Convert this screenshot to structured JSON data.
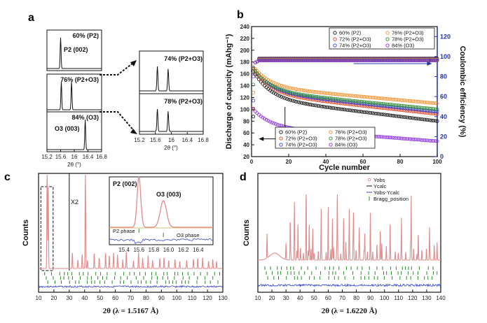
{
  "panel_labels": {
    "a": "a",
    "b": "b",
    "c": "c",
    "d": "d"
  },
  "chart_data": [
    {
      "panel": "a",
      "type": "line",
      "title": "",
      "xlabel": "2θ (°)",
      "ylabel": "",
      "left_xlim": [
        15.2,
        16.8
      ],
      "left_ticks": [
        "15.2",
        "15.6",
        "16",
        "16.4",
        "16.8"
      ],
      "right_xlim": [
        15.2,
        16.8
      ],
      "right_ticks": [
        "15.2",
        "15.6",
        "16",
        "16.4",
        "16.8"
      ],
      "left_boxes": [
        {
          "label": "60% (P2)",
          "sub": "P2 (002)",
          "peaks": [
            15.6
          ]
        },
        {
          "label": "76% (P2+O3)",
          "sub": "",
          "peaks": [
            15.62,
            15.92
          ]
        },
        {
          "label": "84% (O3)",
          "sub": "O3 (003)",
          "peaks": [
            16.32
          ]
        }
      ],
      "right_boxes": [
        {
          "label": "74% (P2+O3)",
          "peaks": [
            15.65,
            15.92
          ]
        },
        {
          "label": "78% (P2+O3)",
          "peaks": [
            15.65,
            15.92
          ]
        }
      ]
    },
    {
      "panel": "b",
      "type": "scatter",
      "xlabel": "Cycle number",
      "ylabel": "Discharge of capacity (mAhg⁻¹)",
      "y2label": "Coulombic efficiency (%)",
      "xlim": [
        0,
        100
      ],
      "ylim": [
        20,
        240
      ],
      "y2lim": [
        0,
        130
      ],
      "x_ticks": [
        "0",
        "20",
        "40",
        "60",
        "80",
        "100"
      ],
      "y_ticks": [
        "20",
        "40",
        "60",
        "80",
        "100",
        "120",
        "140",
        "160",
        "180",
        "200",
        "220",
        "240"
      ],
      "y2_ticks": [
        "0",
        "20",
        "40",
        "60",
        "80",
        "100",
        "120"
      ],
      "capacity_series": [
        {
          "name": "60% (P2)",
          "color": "#111111",
          "start": 165,
          "end": 80
        },
        {
          "name": "72% (P2+O3)",
          "color": "#e04020",
          "start": 168,
          "end": 92
        },
        {
          "name": "74% (P2+O3)",
          "color": "#2a3fd6",
          "start": 170,
          "end": 96
        },
        {
          "name": "76% (P2+O3)",
          "color": "#f0902a",
          "start": 172,
          "end": 110
        },
        {
          "name": "78% (P2+O3)",
          "color": "#2e8b2e",
          "start": 169,
          "end": 100
        },
        {
          "name": "84% (O3)",
          "color": "#8a2be2",
          "start": 100,
          "end": 46
        }
      ],
      "efficiency_value": 98,
      "legend_capacity": [
        "60% (P2)",
        "76% (P2+O3)",
        "72% (P2+O3)",
        "78% (P2+O3)",
        "74% (P2+O3)",
        "84% (O3)"
      ],
      "legend_efficiency": [
        "60% (P2)",
        "76% (P2+O3)",
        "72% (P2+O3)",
        "78% (P2+O3)",
        "74% (P2+O3)",
        "84% (O3)"
      ]
    },
    {
      "panel": "c",
      "type": "line",
      "xlabel": "2θ (λ = 1.5167 Å)",
      "ylabel": "Counts",
      "xlim": [
        10,
        130
      ],
      "x_ticks": [
        "10",
        "20",
        "30",
        "40",
        "50",
        "60",
        "70",
        "80",
        "90",
        "100",
        "110",
        "120",
        "130"
      ],
      "annotation": "X2",
      "inset": {
        "xlim": [
          15.2,
          16.6
        ],
        "x_ticks": [
          "15.4",
          "15.6",
          "15.8",
          "16.0",
          "16.2",
          "16.4"
        ],
        "peak_labels": [
          "P2 (002)",
          "O3 (003)"
        ],
        "phase_labels": [
          "P2 phase",
          "O3 phase"
        ]
      }
    },
    {
      "panel": "d",
      "type": "line",
      "xlabel": "2θ (λ = 1.6220 Å)",
      "ylabel": "Counts",
      "xlim": [
        10,
        140
      ],
      "x_ticks": [
        "10",
        "20",
        "30",
        "40",
        "50",
        "60",
        "70",
        "80",
        "90",
        "100",
        "110",
        "120",
        "130",
        "140"
      ],
      "legend": [
        "Yobs",
        "Ycalc",
        "Yobs-Ycalc",
        "Bragg_position"
      ]
    }
  ]
}
